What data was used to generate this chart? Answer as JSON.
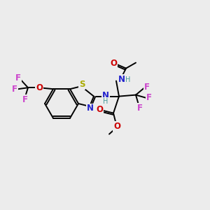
{
  "background_color": "#ececec",
  "fig_size": [
    3.0,
    3.0
  ],
  "dpi": 100,
  "atoms": {
    "colors": {
      "C": "#000000",
      "N": "#2222cc",
      "O": "#cc0000",
      "S": "#aaaa00",
      "F": "#cc44cc",
      "H": "#449999"
    }
  },
  "bond_color": "#000000",
  "bond_width": 1.4,
  "font_size_atom": 8.5,
  "font_size_small": 7.0
}
